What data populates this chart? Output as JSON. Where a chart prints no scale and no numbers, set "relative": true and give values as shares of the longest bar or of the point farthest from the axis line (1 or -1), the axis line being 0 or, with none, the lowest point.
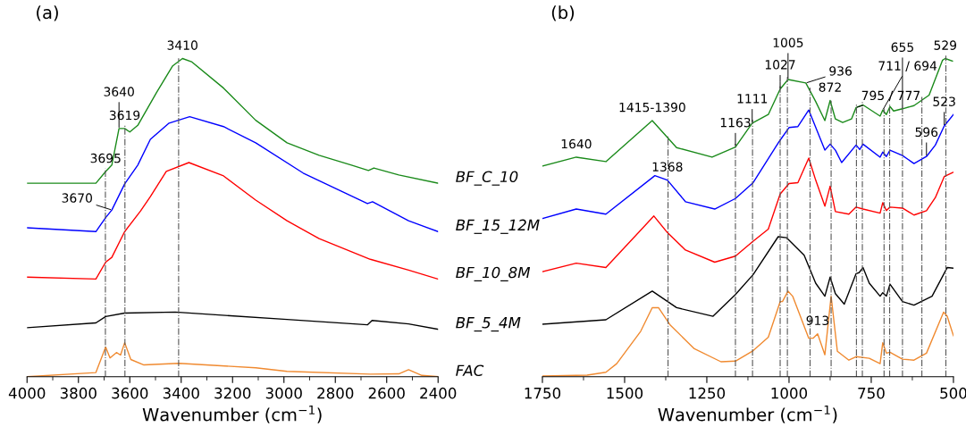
{
  "chart_data": [
    {
      "type": "line",
      "title": "(a)",
      "xlabel": "Wavenumber (cm$^{−1}$)",
      "relative": true,
      "xlim": [
        4000,
        2400
      ],
      "xticks": [
        4000,
        3800,
        3600,
        3400,
        3200,
        3000,
        2800,
        2600,
        2400
      ],
      "tick_labels": "x",
      "legend": false,
      "grid": false,
      "marker": "none",
      "line_style": "solid",
      "series": [
        {
          "name": "BF_C_10",
          "color": "#1a8a1a",
          "x": [
            4000,
            3732,
            3694,
            3670,
            3642,
            3620,
            3600,
            3569,
            3496,
            3433,
            3395,
            3360,
            3235,
            3110,
            2988,
            2863,
            2737,
            2671,
            2650,
            2553,
            2400
          ],
          "values": [
            0.608,
            0.608,
            0.645,
            0.665,
            0.78,
            0.78,
            0.769,
            0.79,
            0.893,
            0.977,
            1.0,
            0.99,
            0.907,
            0.806,
            0.735,
            0.696,
            0.665,
            0.648,
            0.656,
            0.634,
            0.608
          ]
        },
        {
          "name": "BF_15_12M",
          "color": "#0000ff",
          "x": [
            4000,
            3732,
            3694,
            3670,
            3620,
            3569,
            3520,
            3447,
            3367,
            3235,
            3110,
            2925,
            2675,
            2655,
            2515,
            2400
          ],
          "values": [
            0.468,
            0.456,
            0.5,
            0.524,
            0.606,
            0.665,
            0.746,
            0.797,
            0.817,
            0.786,
            0.735,
            0.64,
            0.544,
            0.55,
            0.49,
            0.456
          ]
        },
        {
          "name": "BF_10_8M",
          "color": "#ff0000",
          "x": [
            4000,
            3732,
            3694,
            3670,
            3620,
            3558,
            3520,
            3458,
            3370,
            3235,
            3110,
            2988,
            2863,
            2664,
            2515,
            2400
          ],
          "values": [
            0.313,
            0.307,
            0.36,
            0.375,
            0.456,
            0.521,
            0.566,
            0.645,
            0.673,
            0.631,
            0.555,
            0.49,
            0.434,
            0.369,
            0.335,
            0.307
          ]
        },
        {
          "name": "BF_5_4M",
          "color": "#000000",
          "x": [
            4000,
            3732,
            3694,
            3620,
            3423,
            2988,
            2675,
            2657,
            2515,
            2400
          ],
          "values": [
            0.154,
            0.169,
            0.189,
            0.2,
            0.203,
            0.18,
            0.163,
            0.177,
            0.166,
            0.149
          ]
        },
        {
          "name": "FAC",
          "color": "#f08a30",
          "x": [
            4000,
            3732,
            3694,
            3677,
            3652,
            3636,
            3620,
            3596,
            3545,
            3409,
            3110,
            2988,
            2664,
            2553,
            2515,
            2463,
            2400
          ],
          "values": [
            0.0,
            0.013,
            0.093,
            0.059,
            0.076,
            0.068,
            0.107,
            0.054,
            0.037,
            0.042,
            0.028,
            0.017,
            0.008,
            0.009,
            0.022,
            0.004,
            0.0
          ]
        }
      ],
      "ref_lines": [
        {
          "axis": "x",
          "value": 3695,
          "color": "#555555",
          "line_style": "dashdot"
        },
        {
          "axis": "x",
          "value": 3619,
          "color": "#555555",
          "line_style": "dashdot"
        },
        {
          "axis": "x",
          "value": 3410,
          "color": "#555555",
          "line_style": "dashdot"
        }
      ],
      "annotations": [
        {
          "text": "3410",
          "x": 3395,
          "y": 1.0
        },
        {
          "text": "3619",
          "x": 3620,
          "y": 0.78
        },
        {
          "text": "3640",
          "x": 3642,
          "y": 0.78
        },
        {
          "text": "3695",
          "x": 3694,
          "y": 0.645
        },
        {
          "text": "3670",
          "x": 3670,
          "y": 0.524
        }
      ]
    },
    {
      "type": "line",
      "title": "(b)",
      "xlabel": "Wavenumber (cm$^{−1}$)",
      "relative": true,
      "xlim": [
        1750,
        500
      ],
      "xticks": [
        1750,
        1500,
        1250,
        1000,
        750,
        500
      ],
      "tick_labels": "x",
      "legend": false,
      "grid": false,
      "marker": "none",
      "line_style": "solid",
      "series": [
        {
          "color": "#1a8a1a",
          "x": [
            1750,
            1647,
            1557,
            1416,
            1342,
            1234,
            1163,
            1112,
            1063,
            1027,
            1003,
            949,
            919,
            891,
            875,
            859,
            837,
            810,
            796,
            775,
            723,
            715,
            704,
            693,
            682,
            655,
            620,
            574,
            533,
            525,
            503
          ],
          "values": [
            0.662,
            0.69,
            0.676,
            0.805,
            0.72,
            0.69,
            0.722,
            0.797,
            0.824,
            0.904,
            0.934,
            0.923,
            0.865,
            0.805,
            0.868,
            0.81,
            0.799,
            0.81,
            0.846,
            0.854,
            0.819,
            0.838,
            0.824,
            0.849,
            0.835,
            0.842,
            0.852,
            0.885,
            0.995,
            1.0,
            0.992
          ]
        },
        {
          "color": "#0000ff",
          "x": [
            1750,
            1647,
            1557,
            1408,
            1370,
            1315,
            1226,
            1163,
            1109,
            1030,
            1000,
            973,
            940,
            891,
            875,
            859,
            840,
            796,
            785,
            775,
            723,
            715,
            704,
            693,
            655,
            620,
            582,
            555,
            528,
            500
          ],
          "values": [
            0.497,
            0.527,
            0.511,
            0.632,
            0.618,
            0.55,
            0.527,
            0.56,
            0.61,
            0.739,
            0.783,
            0.786,
            0.838,
            0.712,
            0.731,
            0.712,
            0.673,
            0.728,
            0.714,
            0.731,
            0.69,
            0.706,
            0.692,
            0.712,
            0.695,
            0.67,
            0.692,
            0.728,
            0.788,
            0.824
          ]
        },
        {
          "color": "#ff0000",
          "x": [
            1750,
            1647,
            1557,
            1411,
            1370,
            1315,
            1226,
            1163,
            1109,
            1063,
            1027,
            1000,
            973,
            940,
            919,
            891,
            875,
            859,
            818,
            796,
            775,
            723,
            715,
            704,
            693,
            655,
            620,
            582,
            555,
            528,
            500
          ],
          "values": [
            0.33,
            0.357,
            0.343,
            0.505,
            0.453,
            0.398,
            0.36,
            0.379,
            0.426,
            0.464,
            0.574,
            0.607,
            0.61,
            0.687,
            0.618,
            0.536,
            0.599,
            0.519,
            0.511,
            0.533,
            0.527,
            0.514,
            0.547,
            0.522,
            0.533,
            0.53,
            0.508,
            0.522,
            0.563,
            0.629,
            0.643
          ]
        },
        {
          "color": "#000000",
          "x": [
            1750,
            1557,
            1416,
            1342,
            1231,
            1163,
            1109,
            1033,
            1008,
            954,
            919,
            891,
            875,
            859,
            832,
            796,
            787,
            775,
            756,
            723,
            715,
            704,
            693,
            655,
            620,
            565,
            519,
            500
          ],
          "values": [
            0.165,
            0.179,
            0.269,
            0.217,
            0.19,
            0.258,
            0.321,
            0.44,
            0.437,
            0.382,
            0.294,
            0.253,
            0.313,
            0.261,
            0.228,
            0.324,
            0.327,
            0.343,
            0.294,
            0.253,
            0.264,
            0.253,
            0.291,
            0.236,
            0.225,
            0.253,
            0.343,
            0.341
          ]
        },
        {
          "color": "#f08a30",
          "x": [
            1750,
            1614,
            1557,
            1524,
            1451,
            1416,
            1397,
            1361,
            1288,
            1207,
            1163,
            1109,
            1063,
            1027,
            1020,
            1003,
            989,
            940,
            927,
            913,
            891,
            872,
            853,
            818,
            796,
            756,
            723,
            715,
            704,
            693,
            655,
            620,
            582,
            530,
            519,
            500
          ],
          "values": [
            0.002,
            0.005,
            0.014,
            0.041,
            0.143,
            0.217,
            0.217,
            0.162,
            0.088,
            0.047,
            0.049,
            0.082,
            0.124,
            0.236,
            0.236,
            0.269,
            0.253,
            0.121,
            0.121,
            0.135,
            0.069,
            0.253,
            0.08,
            0.052,
            0.063,
            0.058,
            0.041,
            0.107,
            0.074,
            0.077,
            0.055,
            0.052,
            0.074,
            0.203,
            0.19,
            0.129
          ]
        }
      ],
      "ref_lines": [
        {
          "axis": "x",
          "value": 1368,
          "color": "#555555",
          "line_style": "dashdot"
        },
        {
          "axis": "x",
          "value": 1163,
          "color": "#555555",
          "line_style": "dashdot"
        },
        {
          "axis": "x",
          "value": 1111,
          "color": "#555555",
          "line_style": "dashdot"
        },
        {
          "axis": "x",
          "value": 1027,
          "color": "#555555",
          "line_style": "dashdot"
        },
        {
          "axis": "x",
          "value": 1005,
          "color": "#555555",
          "line_style": "dashdot"
        },
        {
          "axis": "x",
          "value": 936,
          "color": "#555555",
          "line_style": "dashdot"
        },
        {
          "axis": "x",
          "value": 872,
          "color": "#555555",
          "line_style": "dashdot"
        },
        {
          "axis": "x",
          "value": 795,
          "color": "#555555",
          "line_style": "dashdot"
        },
        {
          "axis": "x",
          "value": 777,
          "color": "#555555",
          "line_style": "dashdot"
        },
        {
          "axis": "x",
          "value": 711,
          "color": "#555555",
          "line_style": "dashdot"
        },
        {
          "axis": "x",
          "value": 694,
          "color": "#555555",
          "line_style": "dashdot"
        },
        {
          "axis": "x",
          "value": 655,
          "color": "#555555",
          "line_style": "dashdot"
        },
        {
          "axis": "x",
          "value": 596,
          "color": "#555555",
          "line_style": "dashdot"
        },
        {
          "axis": "x",
          "value": 523,
          "color": "#555555",
          "line_style": "dashdot"
        }
      ],
      "annotations": [
        {
          "text": "1640",
          "x": 1647,
          "y": 0.69
        },
        {
          "text": "1415-1390",
          "x": 1416,
          "y": 0.805
        },
        {
          "text": "1368",
          "x": 1370,
          "y": 0.618
        },
        {
          "text": "1163",
          "x": 1163,
          "y": 0.722
        },
        {
          "text": "1111",
          "x": 1112,
          "y": 0.797
        },
        {
          "text": "1027",
          "x": 1027,
          "y": 0.904
        },
        {
          "text": "1005",
          "x": 1003,
          "y": 0.934
        },
        {
          "text": "936",
          "x": 949,
          "y": 0.923
        },
        {
          "text": "872",
          "x": 875,
          "y": 0.868
        },
        {
          "text": "795 / 777",
          "x": 796,
          "y": 0.846
        },
        {
          "text": "711 / 694",
          "x": 715,
          "y": 0.838
        },
        {
          "text": "655",
          "x": 655,
          "y": 0.842
        },
        {
          "text": "596",
          "x": 582,
          "y": 0.692
        },
        {
          "text": "529",
          "x": 525,
          "y": 1.0
        },
        {
          "text": "523",
          "x": 528,
          "y": 0.788
        },
        {
          "text": "913",
          "x": 913,
          "y": 0.135
        }
      ]
    }
  ]
}
